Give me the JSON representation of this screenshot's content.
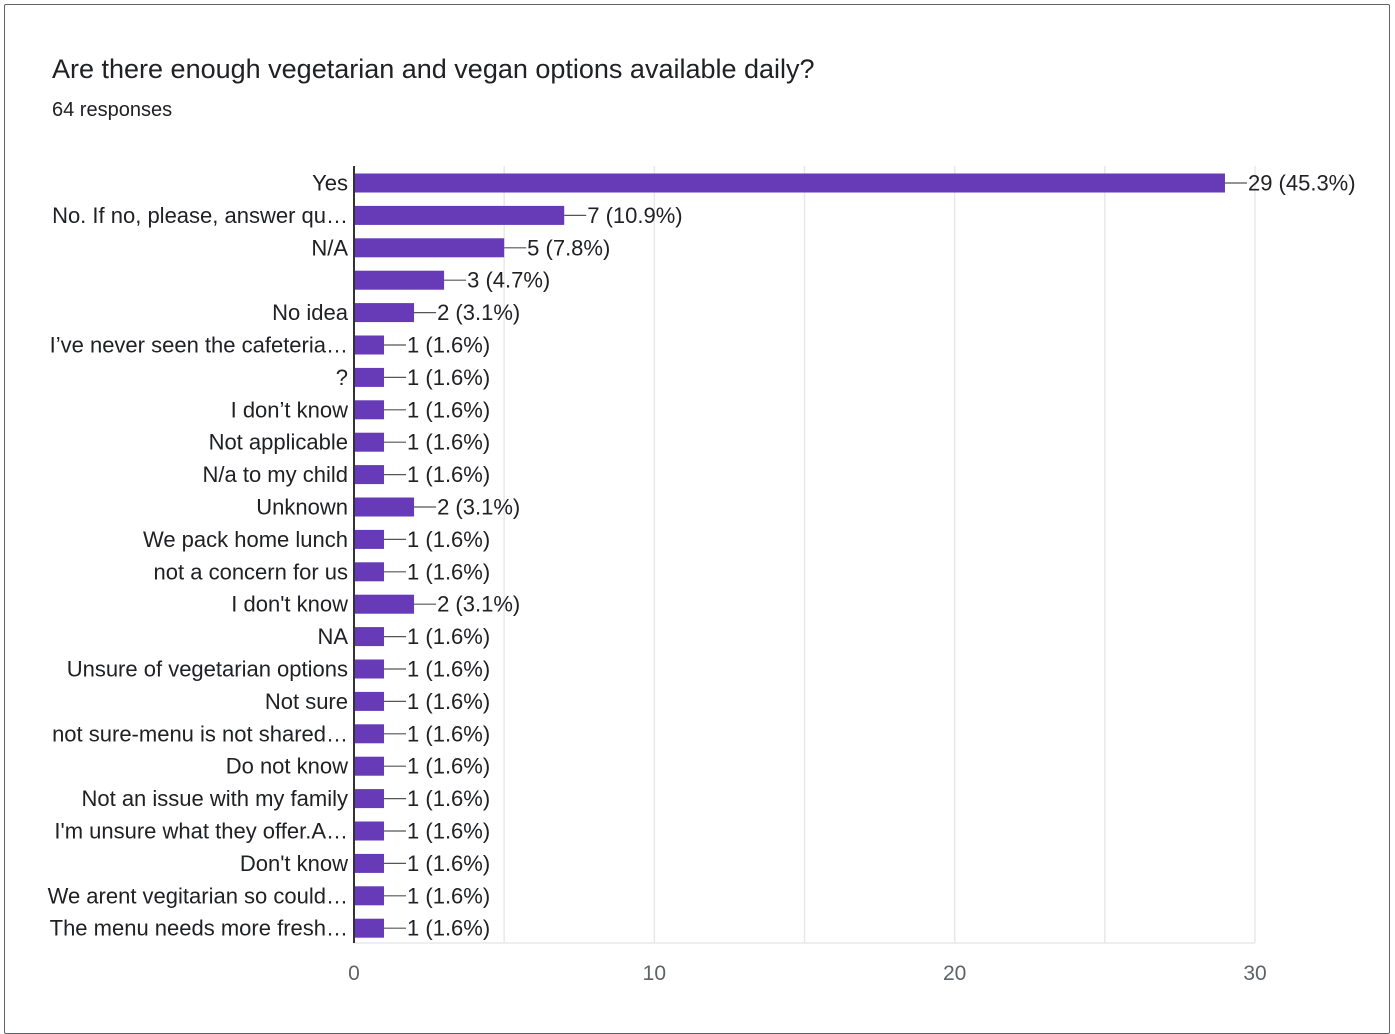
{
  "card": {
    "title": "Are there enough vegetarian and vegan options available daily?",
    "subtitle": "64 responses"
  },
  "colors": {
    "bar": "#673ab7",
    "grid": "#e8e8e8",
    "axis": "#333333",
    "text": "#202124",
    "tick_text": "#5f6368"
  },
  "chart_data": {
    "type": "bar",
    "orientation": "horizontal",
    "title": "Are there enough vegetarian and vegan options available daily?",
    "subtitle": "64 responses",
    "categories": [
      "Yes",
      "No. If no, please, answer qu…",
      "N/A",
      "",
      "No idea",
      "I’ve never seen the cafeteria…",
      "?",
      "I don’t know",
      "Not applicable",
      "N/a to my child",
      "Unknown",
      "We pack home lunch",
      "not a concern for us",
      "I don't know",
      "NA",
      "Unsure of vegetarian options",
      "Not sure",
      "not sure-menu is not shared…",
      "Do not know",
      "Not an issue with my family",
      "I'm unsure what they offer.A…",
      "Don't know",
      "We arent vegitarian so could…",
      "The menu needs more fresh…"
    ],
    "values": [
      29,
      7,
      5,
      3,
      2,
      1,
      1,
      1,
      1,
      1,
      2,
      1,
      1,
      2,
      1,
      1,
      1,
      1,
      1,
      1,
      1,
      1,
      1,
      1
    ],
    "data_labels": [
      "29 (45.3%)",
      "7 (10.9%)",
      "5 (7.8%)",
      "3 (4.7%)",
      "2 (3.1%)",
      "1 (1.6%)",
      "1 (1.6%)",
      "1 (1.6%)",
      "1 (1.6%)",
      "1 (1.6%)",
      "2 (3.1%)",
      "1 (1.6%)",
      "1 (1.6%)",
      "2 (3.1%)",
      "1 (1.6%)",
      "1 (1.6%)",
      "1 (1.6%)",
      "1 (1.6%)",
      "1 (1.6%)",
      "1 (1.6%)",
      "1 (1.6%)",
      "1 (1.6%)",
      "1 (1.6%)",
      "1 (1.6%)"
    ],
    "x_ticks": [
      "0",
      "10",
      "20",
      "30"
    ],
    "xlim": [
      0,
      30
    ],
    "grid": true,
    "legend": "none"
  }
}
